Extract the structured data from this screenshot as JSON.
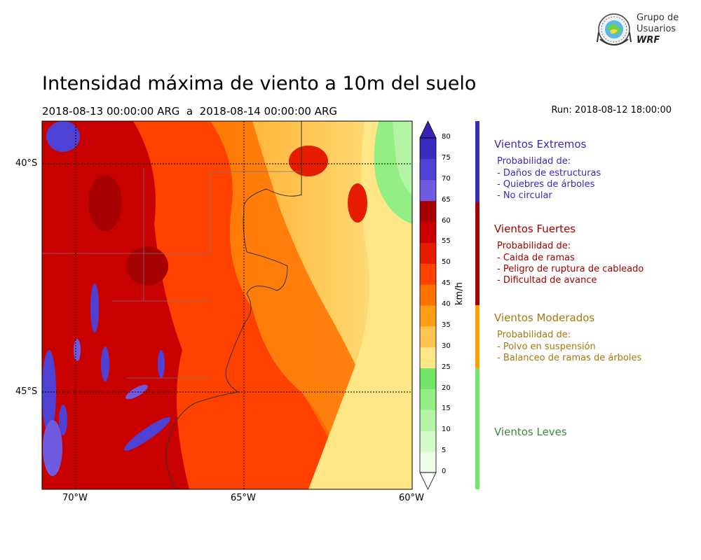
{
  "header": {
    "title": "Intensidad máxima de viento a 10m del suelo",
    "subtitle": "2018-08-13 00:00:00 ARG  a  2018-08-14 00:00:00 ARG",
    "run": "Run: 2018-08-12 18:00:00"
  },
  "logo": {
    "line1": "Grupo de",
    "line2": "Usuarios",
    "line3": "WRF",
    "icon": "globe-seal-icon"
  },
  "map": {
    "lat_labels": [
      "40°S",
      "45°S"
    ],
    "lon_labels": [
      "70°W",
      "65°W",
      "60°W"
    ],
    "graticule": "dotted"
  },
  "colorbar": {
    "unit": "km/h",
    "ticks": [
      "0",
      "5",
      "10",
      "15",
      "20",
      "25",
      "30",
      "35",
      "40",
      "45",
      "50",
      "55",
      "60",
      "65",
      "70",
      "75",
      "80"
    ],
    "colors": [
      "#eeffe8",
      "#d3fbc9",
      "#b4f5a5",
      "#93ee84",
      "#72e767",
      "#ffe788",
      "#ffc451",
      "#ff9e14",
      "#ff7200",
      "#ff4100",
      "#e51c00",
      "#c80000",
      "#a60000",
      "#705be0",
      "#4f41d4",
      "#3b2abf"
    ],
    "extend_top_color": "#3a22b6",
    "extend_bottom_color": "#ffffff"
  },
  "categories": [
    {
      "name": "Vientos Extremos",
      "color": "#3a2ab8",
      "lines": [
        "Probabilidad de:",
        "- Daños de estructuras",
        "- Quiebres de árboles",
        "- No circular"
      ]
    },
    {
      "name": "Vientos Fuertes",
      "color": "#a50000",
      "lines": [
        "Probabilidad de:",
        "- Caida de ramas",
        "- Peligro de ruptura de cableado",
        "- Dificultad de avance"
      ]
    },
    {
      "name": "Vientos Moderados",
      "color": "#a8780a",
      "lines": [
        "Probabilidad de:",
        "- Polvo en suspensión",
        "- Balanceo de ramas de árboles"
      ]
    },
    {
      "name": "Vientos Leves",
      "color": "#3b8a3b",
      "lines": []
    }
  ],
  "category_bar_colors": [
    "#3a2ab8",
    "#a50000",
    "#ff9f00",
    "#72e766"
  ]
}
